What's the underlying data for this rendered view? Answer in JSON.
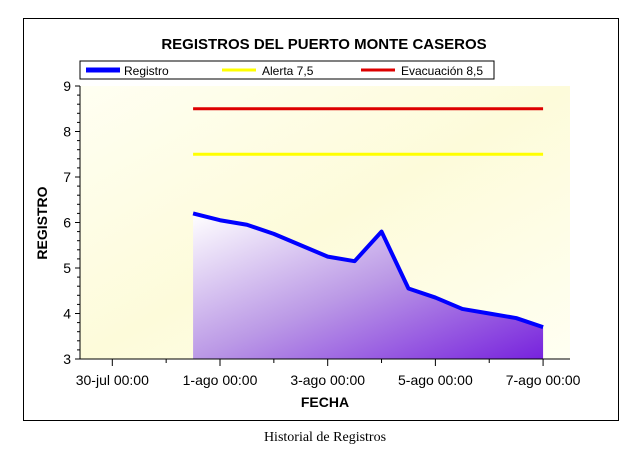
{
  "chart_data": {
    "type": "area",
    "title": "REGISTROS DEL PUERTO MONTE CASEROS",
    "xlabel": "FECHA",
    "ylabel": "REGISTRO",
    "ylim": [
      3,
      9
    ],
    "yticks": [
      3,
      4,
      5,
      6,
      7,
      8,
      9
    ],
    "x_tick_labels": [
      "30-jul 00:00",
      "1-ago 00:00",
      "3-ago 00:00",
      "5-ago 00:00",
      "7-ago 00:00"
    ],
    "x_range_days": [
      -0.6,
      8.5
    ],
    "legend_position": "top",
    "series": [
      {
        "name": "Registro",
        "color": "#0000ff",
        "x": [
          1.5,
          2.0,
          2.5,
          3.0,
          3.5,
          4.0,
          4.5,
          5.0,
          5.5,
          6.0,
          6.5,
          7.0,
          7.5,
          8.0
        ],
        "y": [
          6.2,
          6.05,
          5.95,
          5.75,
          5.5,
          5.25,
          5.15,
          5.8,
          4.55,
          4.35,
          4.1,
          4.0,
          3.9,
          3.7
        ]
      },
      {
        "name": "Alerta 7,5",
        "color": "#ffff00",
        "value": 7.5,
        "x_from": 1.5,
        "x_to": 8.0
      },
      {
        "name": "Evacuación 8,5",
        "color": "#dd0000",
        "value": 8.5,
        "x_from": 1.5,
        "x_to": 8.0
      }
    ]
  },
  "caption": "Historial de Registros"
}
